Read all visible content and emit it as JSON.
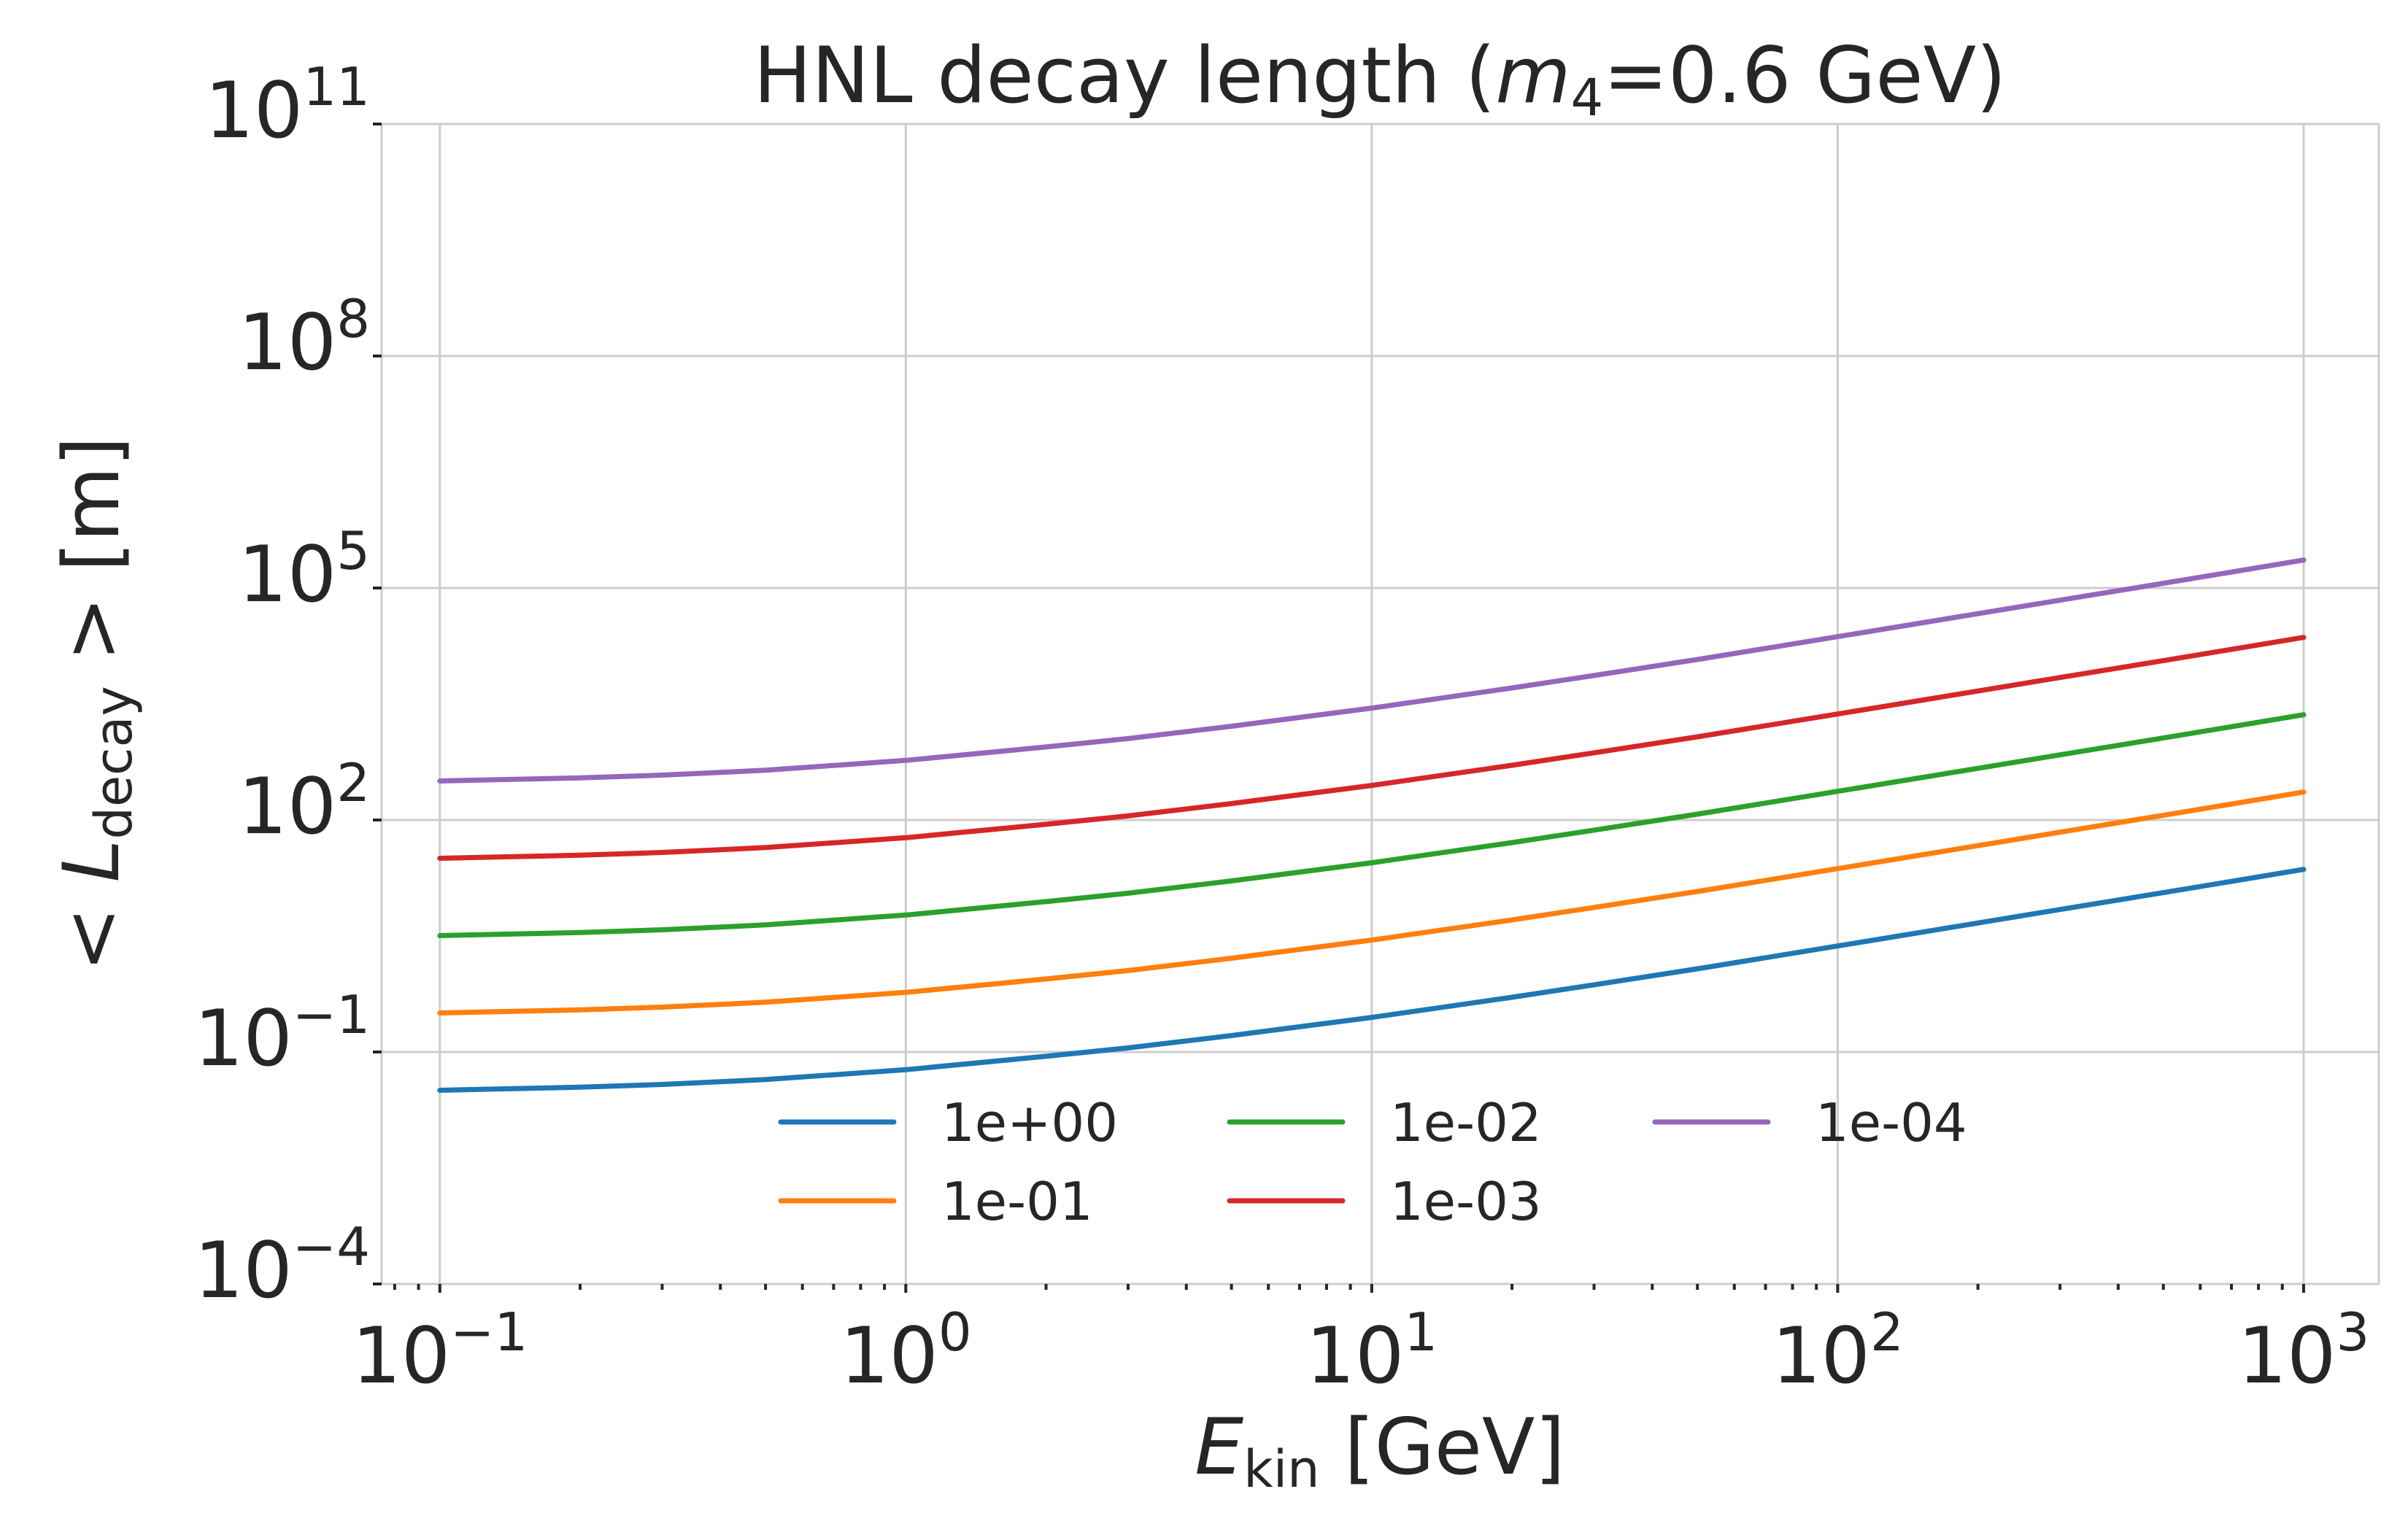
{
  "chart_data": {
    "type": "line",
    "title": "HNL decay length (m4=0.6 GeV)",
    "xlabel": "E_kin [GeV]",
    "ylabel": "< L_decay >  [m]",
    "x_scale": "log",
    "y_scale": "log",
    "xlim": [
      0.075,
      1450
    ],
    "ylim": [
      0.0001,
      100000000000
    ],
    "grid": true,
    "legend_position": "lower center",
    "legend_columns": 3,
    "x_ticks": [
      {
        "value": 0.1,
        "base": "10",
        "exp": "−1"
      },
      {
        "value": 1,
        "base": "10",
        "exp": "0"
      },
      {
        "value": 10,
        "base": "10",
        "exp": "1"
      },
      {
        "value": 100,
        "base": "10",
        "exp": "2"
      },
      {
        "value": 1000,
        "base": "10",
        "exp": "3"
      }
    ],
    "y_ticks": [
      {
        "value": 0.0001,
        "base": "10",
        "exp": "−4"
      },
      {
        "value": 0.1,
        "base": "10",
        "exp": "−1"
      },
      {
        "value": 100,
        "base": "10",
        "exp": "2"
      },
      {
        "value": 100000,
        "base": "10",
        "exp": "5"
      },
      {
        "value": 100000000,
        "base": "10",
        "exp": "8"
      },
      {
        "value": 100000000000,
        "base": "10",
        "exp": "11"
      }
    ],
    "x": [
      0.1,
      0.2,
      0.3,
      0.5,
      1,
      2,
      3,
      5,
      10,
      20,
      30,
      50,
      100,
      200,
      300,
      500,
      1000
    ],
    "series": [
      {
        "name": "1e+00",
        "color": "#1f77b4",
        "values": [
          0.032,
          0.035,
          0.038,
          0.044,
          0.059,
          0.088,
          0.113,
          0.163,
          0.28,
          0.51,
          0.74,
          1.19,
          2.35,
          4.65,
          6.95,
          11.5,
          23
        ]
      },
      {
        "name": "1e-01",
        "color": "#ff7f0e",
        "values": [
          0.32,
          0.35,
          0.38,
          0.44,
          0.59,
          0.88,
          1.13,
          1.63,
          2.8,
          5.1,
          7.4,
          11.9,
          23.5,
          46.5,
          69.5,
          115,
          230
        ]
      },
      {
        "name": "1e-02",
        "color": "#2ca02c",
        "values": [
          3.2,
          3.5,
          3.8,
          4.4,
          5.9,
          8.8,
          11.3,
          16.3,
          28,
          51,
          74,
          119,
          235,
          465,
          695,
          1150,
          2300
        ]
      },
      {
        "name": "1e-03",
        "color": "#d62728",
        "values": [
          32,
          35,
          38,
          44,
          59,
          88,
          113,
          163,
          280,
          510,
          740,
          1190,
          2350,
          4650,
          6950,
          11500,
          23000
        ]
      },
      {
        "name": "1e-04",
        "color": "#9467bd",
        "values": [
          320,
          350,
          380,
          440,
          590,
          880,
          1130,
          1630,
          2800,
          5100,
          7400,
          11900,
          23500,
          46500,
          69500,
          115000,
          230000
        ]
      }
    ]
  }
}
